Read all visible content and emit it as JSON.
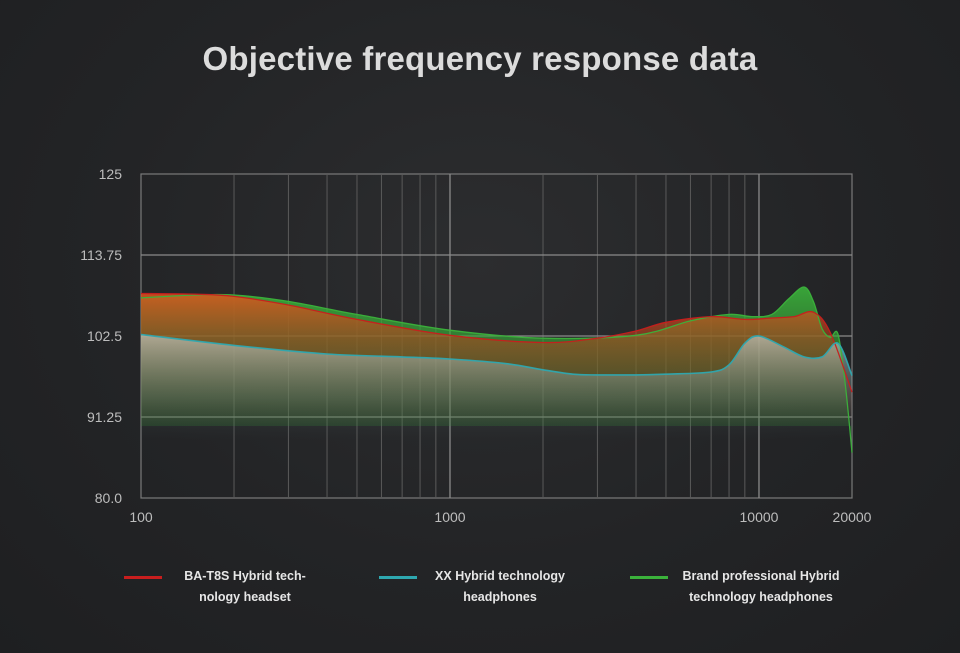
{
  "chart_data": {
    "type": "line",
    "title": "Objective frequency response data",
    "xscale": "log",
    "xlim": [
      100,
      20000
    ],
    "ylim": [
      80,
      125
    ],
    "x_ticks": [
      "100",
      "1000",
      "10000",
      "20000"
    ],
    "y_ticks": [
      "125",
      "113.75",
      "102.5",
      "91.25",
      "80.0"
    ],
    "grid": true,
    "legend_position": "bottom",
    "series": [
      {
        "name": "BA-T8S Hybrid tech-nology headset",
        "color": "#c81e1e",
        "x": [
          100,
          150,
          200,
          300,
          500,
          1000,
          2000,
          3000,
          4000,
          5000,
          7000,
          9000,
          11000,
          13000,
          15000,
          17000,
          20000
        ],
        "y": [
          108.4,
          108.3,
          108,
          106.8,
          104.8,
          102.6,
          101.6,
          102.2,
          103.2,
          104.4,
          105.2,
          104.8,
          105,
          105.2,
          105.8,
          103,
          94.7
        ]
      },
      {
        "name": "XX Hybrid technology headphones",
        "color": "#2ea8b0",
        "x": [
          100,
          200,
          400,
          700,
          1000,
          1500,
          2000,
          2500,
          3000,
          4000,
          5000,
          7000,
          8000,
          9000,
          10000,
          12000,
          14000,
          16000,
          18000,
          20000
        ],
        "y": [
          102.7,
          101.2,
          100,
          99.6,
          99.3,
          98.7,
          97.8,
          97.2,
          97.1,
          97.1,
          97.2,
          97.5,
          98.5,
          101.5,
          102.5,
          101,
          99.6,
          99.6,
          101.5,
          97
        ]
      },
      {
        "name": "Brand professional Hybrid technology headphones",
        "color": "#3bb23b",
        "x": [
          100,
          150,
          200,
          300,
          500,
          1000,
          2000,
          4000,
          6000,
          8000,
          9500,
          11000,
          12500,
          14000,
          15000,
          16000,
          17000,
          18000,
          19000,
          20000
        ],
        "y": [
          107.8,
          108.2,
          108.2,
          107.3,
          105.5,
          103.3,
          102.2,
          102.6,
          104.6,
          105.5,
          105.2,
          105.5,
          107.7,
          109.3,
          107.3,
          103.5,
          102.3,
          102.8,
          96,
          86.3
        ]
      }
    ]
  },
  "legend": {
    "items": [
      {
        "label": "BA-T8S Hybrid tech-nology headset",
        "color": "#c81e1e"
      },
      {
        "label": "XX Hybrid technology headphones",
        "color": "#2ea8b0"
      },
      {
        "label": "Brand professional Hybrid technology headphones",
        "color": "#3bb23b"
      }
    ]
  }
}
